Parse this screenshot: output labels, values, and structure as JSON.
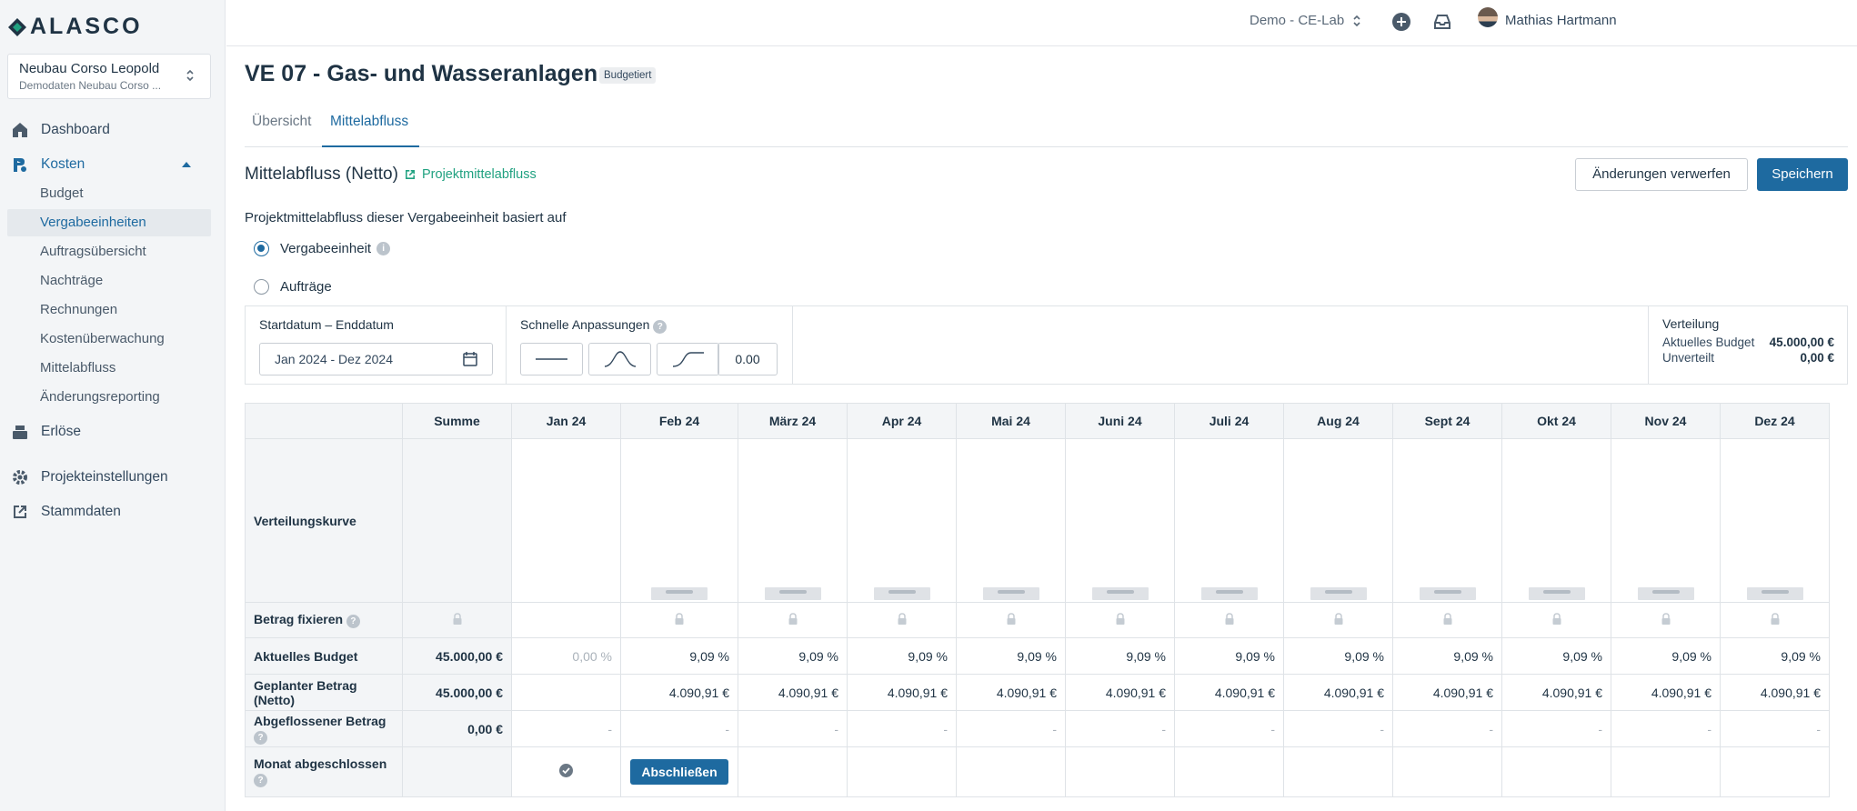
{
  "brand": {
    "name": "ALASCO"
  },
  "project": {
    "name": "Neubau Corso Leopold",
    "subtitle": "Demodaten Neubau Corso ..."
  },
  "sidebar": {
    "main": [
      {
        "label": "Dashboard",
        "icon": "home-icon"
      },
      {
        "label": "Kosten",
        "icon": "cost-icon"
      },
      {
        "label": "Erlöse",
        "icon": "register-icon"
      },
      {
        "label": "Projekteinstellungen",
        "icon": "gear-icon"
      },
      {
        "label": "Stammdaten",
        "icon": "external-link-icon"
      }
    ],
    "cost_items": [
      "Budget",
      "Vergabeeinheiten",
      "Auftragsübersicht",
      "Nachträge",
      "Rechnungen",
      "Kostenüberwachung",
      "Mittelabfluss",
      "Änderungsreporting"
    ]
  },
  "topbar": {
    "org": "Demo - CE-Lab",
    "user": "Mathias Hartmann"
  },
  "page": {
    "title": "VE 07 - Gas- und Wasseranlagen",
    "status": "Budgetiert"
  },
  "tabs": [
    "Übersicht",
    "Mittelabfluss"
  ],
  "section": {
    "title": "Mittelabfluss (Netto)",
    "link": "Projektmittelabfluss",
    "discard": "Änderungen verwerfen",
    "save": "Speichern"
  },
  "basis": {
    "text": "Projektmittelabfluss dieser Vergabeeinheit basiert auf",
    "options": [
      "Vergabeeinheit",
      "Aufträge"
    ],
    "selected": "Vergabeeinheit"
  },
  "controls": {
    "date_label": "Startdatum – Enddatum",
    "date_value": "Jan 2024 -  Dez 2024",
    "quick_label": "Schnelle Anpassungen",
    "curve_value": "0.00",
    "distribution_label": "Verteilung",
    "current_budget_label": "Aktuelles Budget",
    "current_budget": "45.000,00 €",
    "unallocated_label": "Unverteilt",
    "unallocated": "0,00 €"
  },
  "grid": {
    "sum_header": "Summe",
    "months": [
      "Jan 24",
      "Feb 24",
      "März 24",
      "Apr 24",
      "Mai 24",
      "Juni 24",
      "Juli 24",
      "Aug 24",
      "Sept 24",
      "Okt 24",
      "Nov 24",
      "Dez 24"
    ],
    "rows": {
      "curve": "Verteilungskurve",
      "fix": "Betrag fixieren",
      "budget": "Aktuelles Budget",
      "planned": "Geplanter Betrag (Netto)",
      "settled": "Abgeflossener Betrag",
      "closed": "Monat abgeschlossen"
    },
    "budget_sum": "45.000,00 €",
    "budget_pct": [
      "0,00 %",
      "9,09 %",
      "9,09 %",
      "9,09 %",
      "9,09 %",
      "9,09 %",
      "9,09 %",
      "9,09 %",
      "9,09 %",
      "9,09 %",
      "9,09 %",
      "9,09 %"
    ],
    "planned_sum": "45.000,00 €",
    "planned": [
      "",
      "4.090,91 €",
      "4.090,91 €",
      "4.090,91 €",
      "4.090,91 €",
      "4.090,91 €",
      "4.090,91 €",
      "4.090,91 €",
      "4.090,91 €",
      "4.090,91 €",
      "4.090,91 €",
      "4.090,91 €"
    ],
    "settled_sum": "0,00 €",
    "settled_dash": "-",
    "close_button": "Abschließen"
  },
  "colors": {
    "accent": "#1e6aa0",
    "link": "#20a180"
  }
}
